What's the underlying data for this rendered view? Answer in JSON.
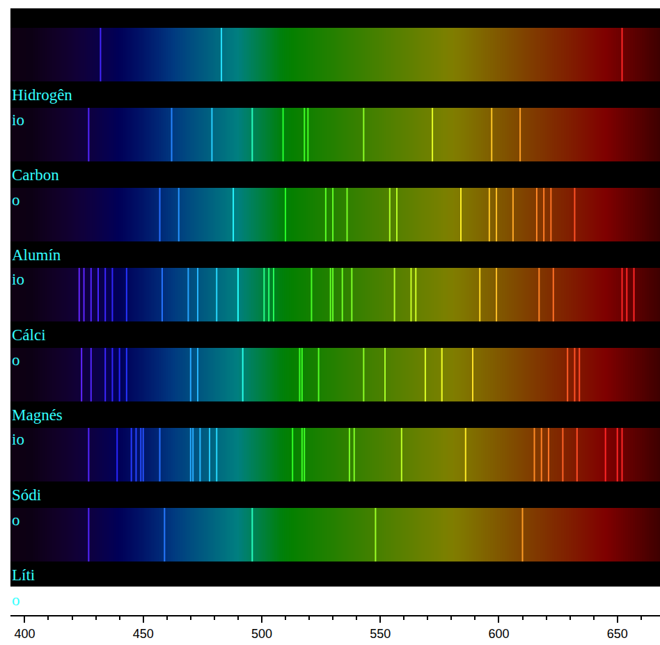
{
  "chart_data": {
    "type": "spectrum",
    "xlim": [
      394,
      668
    ],
    "xticks": [
      400,
      450,
      500,
      550,
      600,
      650
    ],
    "grid": false,
    "tick_labels": "x",
    "series": [
      {
        "label_lines": [
          "Hidrogên",
          "io"
        ],
        "values": [
          432,
          483,
          652
        ]
      },
      {
        "label_lines": [
          "Carbon",
          "o"
        ],
        "values": [
          427,
          462,
          479,
          496,
          509,
          518,
          519.5,
          543,
          572,
          597,
          609
        ]
      },
      {
        "label_lines": [
          "Alumín",
          "io"
        ],
        "values": [
          457,
          465,
          488,
          510,
          527,
          530,
          536,
          554,
          557,
          584,
          596,
          599,
          606,
          616,
          619,
          622,
          632
        ]
      },
      {
        "label_lines": [
          "Cálci",
          "o"
        ],
        "values": [
          423,
          425,
          428,
          431,
          434,
          437,
          443,
          458,
          469,
          473,
          481,
          490,
          501,
          503,
          505,
          521,
          529,
          530,
          534,
          538,
          556,
          563,
          565,
          592,
          599,
          617,
          623,
          652,
          654,
          657
        ]
      },
      {
        "label_lines": [
          "Magnés",
          "io"
        ],
        "values": [
          424,
          428,
          434,
          437,
          440,
          443,
          470,
          473,
          492,
          516,
          517,
          524,
          543,
          552,
          569,
          576,
          589,
          629,
          632,
          634
        ]
      },
      {
        "label_lines": [
          "Sódi",
          "o"
        ],
        "values": [
          427,
          439,
          445,
          447,
          449,
          450,
          457,
          470,
          471,
          474,
          478,
          481,
          513,
          517,
          518,
          537,
          539,
          559,
          586,
          615,
          618,
          621,
          627,
          633,
          645,
          650,
          652
        ]
      },
      {
        "label_lines": [
          "Líti",
          "o"
        ],
        "values": [
          427,
          459,
          496,
          548,
          610
        ]
      }
    ]
  }
}
